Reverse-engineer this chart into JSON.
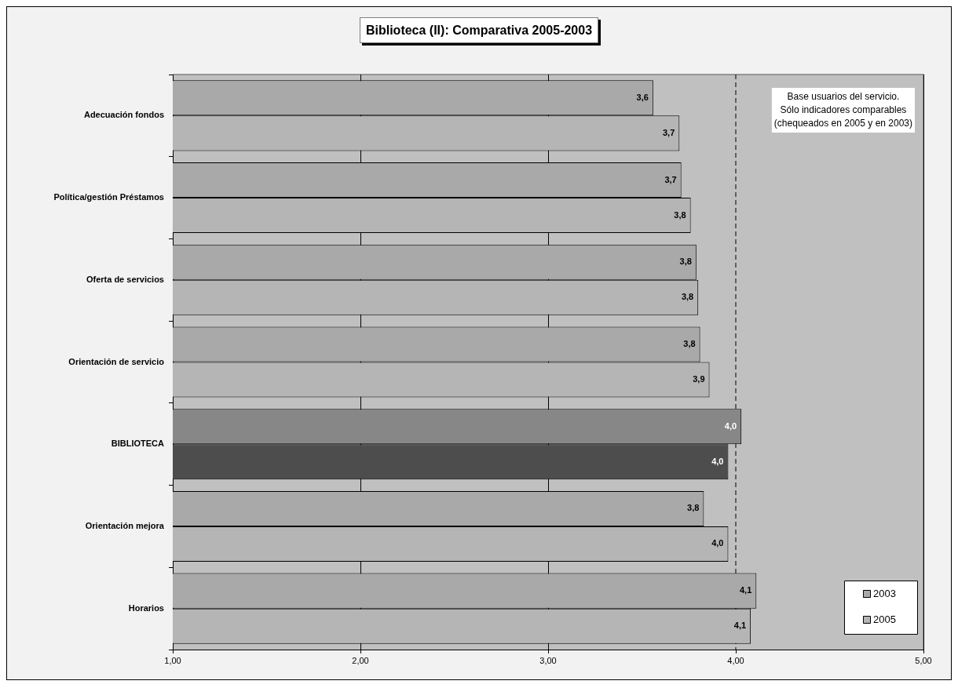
{
  "chart_data": {
    "type": "bar",
    "orientation": "horizontal",
    "title": "Biblioteca (II): Comparativa 2005-2003",
    "categories": [
      "Adecuación fondos",
      "Política/gestión Préstamos",
      "Oferta de servicios",
      "Orientación de servicio",
      "BIBLIOTECA",
      "Orientación mejora",
      "Horarios"
    ],
    "series": [
      {
        "name": "2003",
        "color": "#a9a9a9",
        "colors": [
          "#a9a9a9",
          "#a9a9a9",
          "#a9a9a9",
          "#a9a9a9",
          "#878787",
          "#a9a9a9",
          "#a9a9a9"
        ],
        "values": [
          3.56,
          3.71,
          3.79,
          3.81,
          4.03,
          3.83,
          4.11
        ],
        "value_labels": [
          "3,6",
          "3,7",
          "3,8",
          "3,8",
          "4,0",
          "3,8",
          "4,1"
        ]
      },
      {
        "name": "2005",
        "color": "#b5b5b5",
        "colors": [
          "#b5b5b5",
          "#b5b5b5",
          "#b5b5b5",
          "#b5b5b5",
          "#4d4d4d",
          "#b5b5b5",
          "#b5b5b5"
        ],
        "values": [
          3.7,
          3.76,
          3.8,
          3.86,
          3.96,
          3.96,
          4.08
        ],
        "value_labels": [
          "3,7",
          "3,8",
          "3,8",
          "3,9",
          "4,0",
          "4,0",
          "4,1"
        ]
      }
    ],
    "xlim": [
      1,
      5
    ],
    "xticks": [
      {
        "value": 1,
        "label": "1,00"
      },
      {
        "value": 2,
        "label": "2,00"
      },
      {
        "value": 3,
        "label": "3,00"
      },
      {
        "value": 4,
        "label": "4,00"
      },
      {
        "value": 5,
        "label": "5,00"
      }
    ],
    "grid": "x",
    "legend": "bottom right",
    "ref_lines": [
      {
        "axis": "x",
        "value": 4,
        "color": "#000000",
        "line_style": "dashed"
      }
    ],
    "annotations": [
      "Base usuarios del servicio.\nSólo indicadores comparables\n(chequeados en 2005 y en 2003)"
    ]
  }
}
